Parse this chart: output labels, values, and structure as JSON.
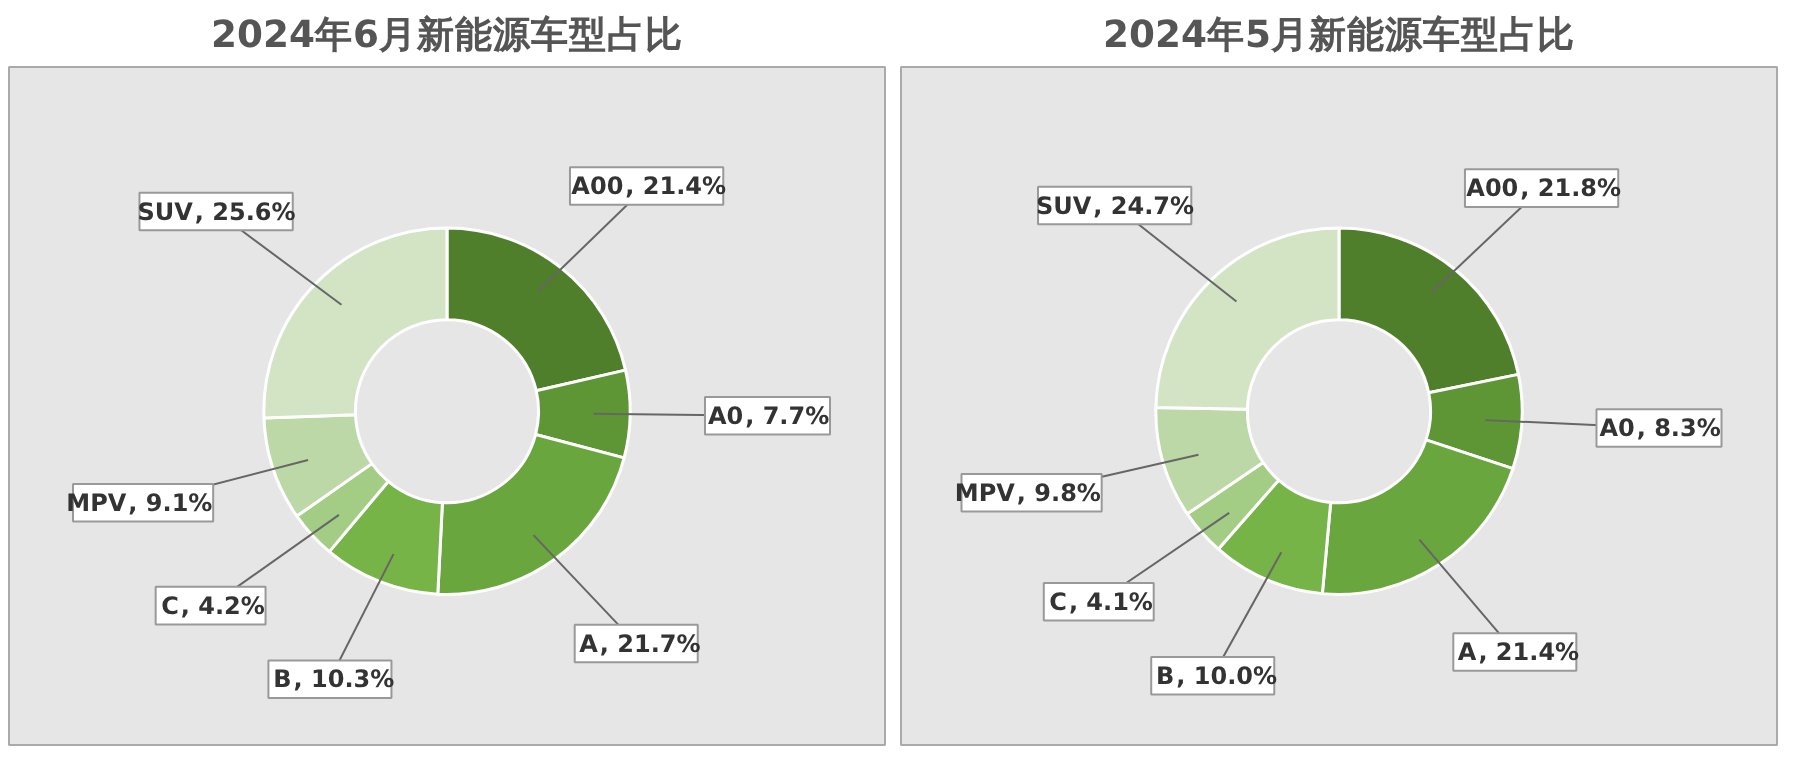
{
  "chart_data": [
    {
      "type": "donut",
      "title": "2024年6月新能源车型占比",
      "categories": [
        "A00",
        "A0",
        "A",
        "B",
        "C",
        "MPV",
        "SUV"
      ],
      "values": [
        21.4,
        7.7,
        21.7,
        10.3,
        4.2,
        9.1,
        25.6
      ],
      "colors": [
        "#4f7f2b",
        "#5e9535",
        "#69a63d",
        "#76b447",
        "#a3cc85",
        "#bcd8a6",
        "#d2e4c4"
      ],
      "value_labels": [
        ", 21.4%",
        ", 7.7%",
        ", 21.7%",
        ", 10.3%",
        ", 4.2%",
        ", 9.1%",
        ", 25.6%"
      ]
    },
    {
      "type": "donut",
      "title": "2024年5月新能源车型占比",
      "categories": [
        "A00",
        "A0",
        "A",
        "B",
        "C",
        "MPV",
        "SUV"
      ],
      "values": [
        21.8,
        8.3,
        21.4,
        10.0,
        4.1,
        9.8,
        24.7
      ],
      "colors": [
        "#4f7f2b",
        "#5e9535",
        "#69a63d",
        "#76b447",
        "#a3cc85",
        "#bcd8a6",
        "#d2e4c4"
      ],
      "value_labels": [
        ", 21.8%",
        ", 8.3%",
        ", 21.4%",
        ", 10.0%",
        ", 4.1%",
        ", 9.8%",
        ", 24.7%"
      ]
    }
  ]
}
